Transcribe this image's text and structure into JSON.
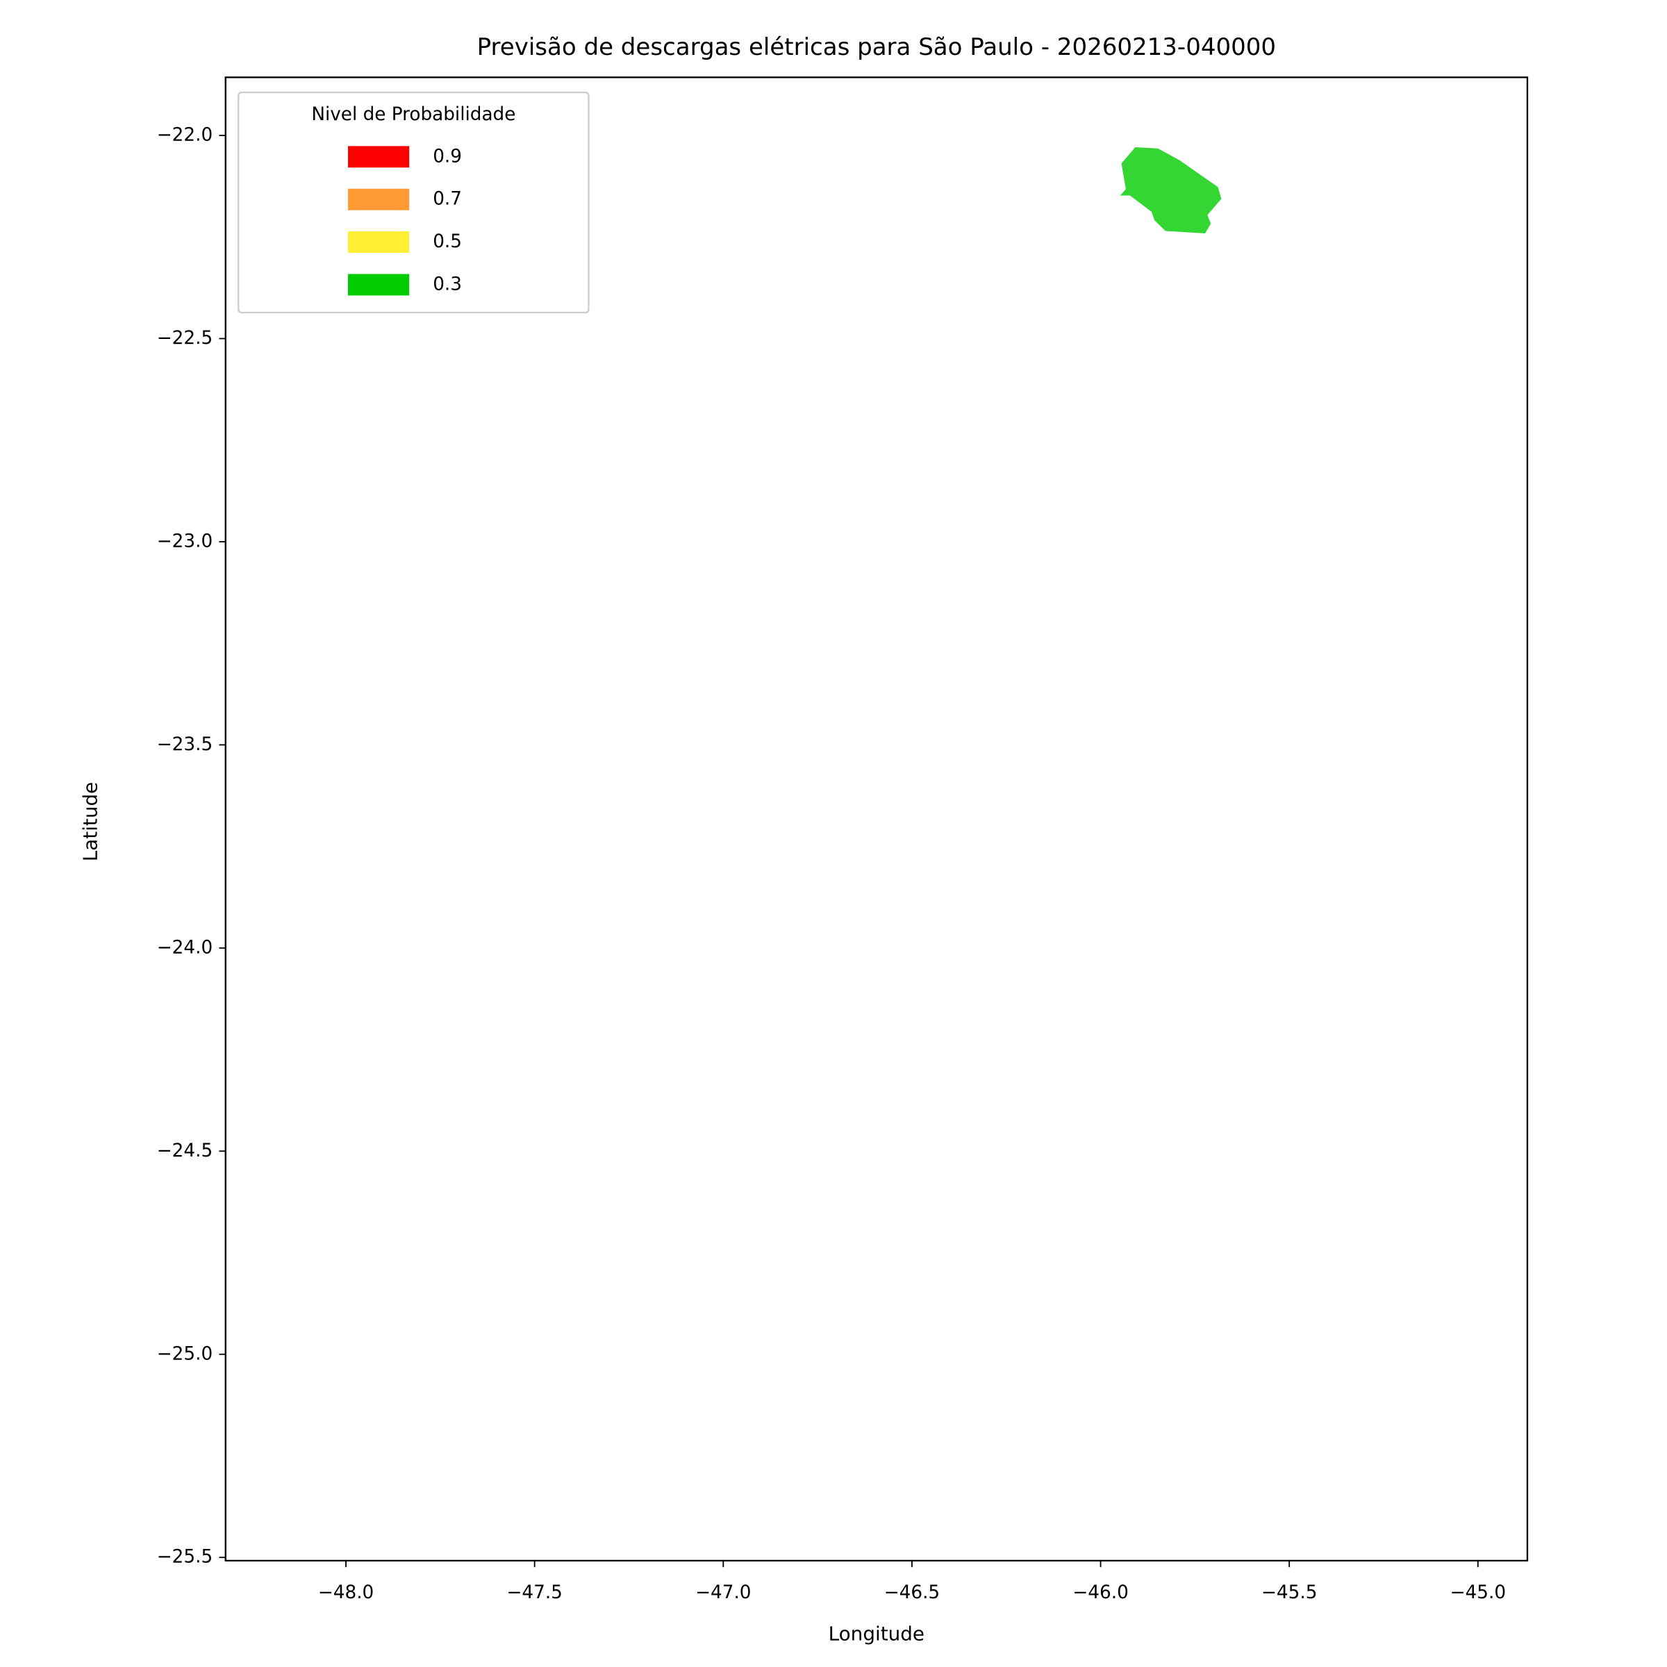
{
  "chart_data": {
    "type": "polygon",
    "title": "Previsão de descargas elétricas para São Paulo - 20260213-040000",
    "x_label": "Longitude",
    "y_label": "Latitude",
    "xlim": [
      -48.319,
      -44.869
    ],
    "ylim": [
      -25.508,
      -21.857
    ],
    "xticks": [
      {
        "value": -48,
        "label": "−48.0"
      },
      {
        "value": -47.5,
        "label": "−47.5"
      },
      {
        "value": -47,
        "label": "−47.0"
      },
      {
        "value": -46.5,
        "label": "−46.5"
      },
      {
        "value": -46,
        "label": "−46.0"
      },
      {
        "value": -45.5,
        "label": "−45.5"
      },
      {
        "value": -45,
        "label": "−45.0"
      }
    ],
    "yticks": [
      {
        "value": -22,
        "label": "−22.0"
      },
      {
        "value": -22.5,
        "label": "−22.5"
      },
      {
        "value": -23,
        "label": "−23.0"
      },
      {
        "value": -23.5,
        "label": "−23.5"
      },
      {
        "value": -24,
        "label": "−24.0"
      },
      {
        "value": -24.5,
        "label": "−24.5"
      },
      {
        "value": -25,
        "label": "−25.0"
      },
      {
        "value": -25.5,
        "label": "−25.5"
      }
    ],
    "legend": {
      "title": "Nivel de Probabilidade",
      "position": "upper left",
      "items": [
        {
          "label": "0.9",
          "color": "#ff0000"
        },
        {
          "label": "0.7",
          "color": "#ff9933"
        },
        {
          "label": "0.5",
          "color": "#ffee33"
        },
        {
          "label": "0.3",
          "color": "#00cc00"
        }
      ]
    },
    "series": [
      {
        "color": "#00cc00",
        "x": [
          -45.908,
          -45.848,
          -45.791,
          -45.689,
          -45.68,
          -45.717,
          -45.708,
          -45.723,
          -45.828,
          -45.857,
          -45.865,
          -45.922,
          -45.948,
          -45.933,
          -45.945
        ],
        "values": [
          -22.029,
          -22.032,
          -22.061,
          -22.127,
          -22.156,
          -22.196,
          -22.217,
          -22.241,
          -22.235,
          -22.209,
          -22.188,
          -22.148,
          -22.148,
          -22.132,
          -22.069
        ]
      }
    ]
  }
}
